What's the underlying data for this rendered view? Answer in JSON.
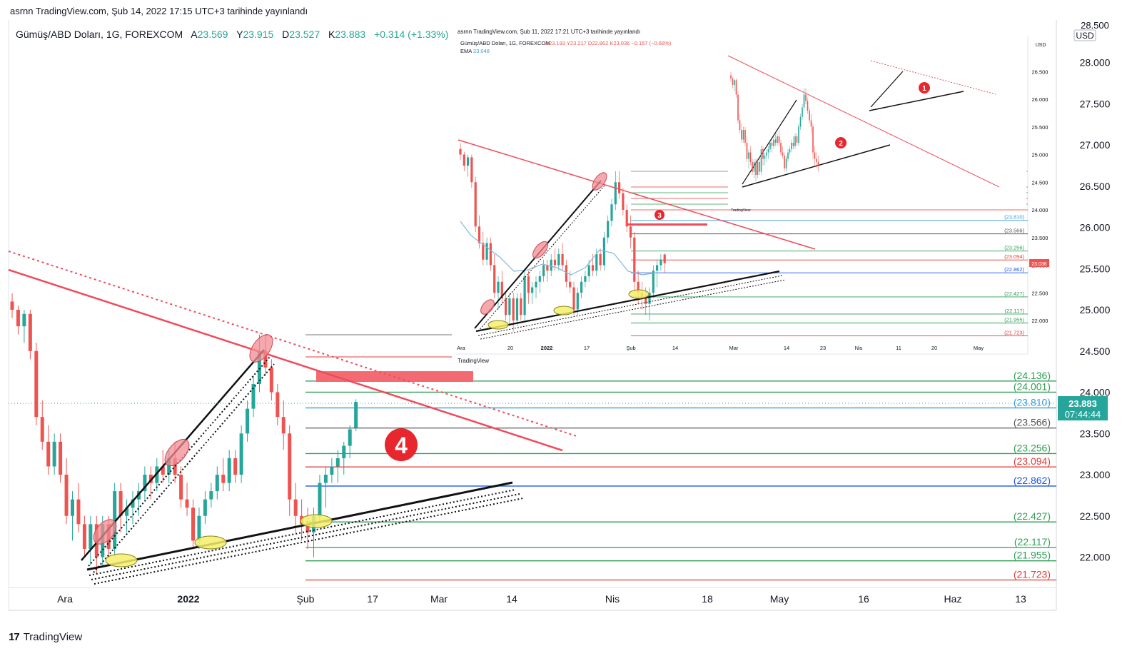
{
  "header": {
    "publish_line": "asrnn TradingView.com, Şub 14, 2022 17:15 UTC+3 tarihinde yayınlandı"
  },
  "legend": {
    "symbol": "Gümüş/ABD Doları, 1G, FOREXCOM",
    "open_label": "A",
    "open": "23.569",
    "high_label": "Y",
    "high": "23.915",
    "low_label": "D",
    "low": "23.527",
    "close_label": "K",
    "close": "23.883",
    "change": "+0.314 (+1.33%)"
  },
  "price_axis": {
    "currency": "USD",
    "top_partial": "28.500",
    "current_price": "23.883",
    "countdown": "07:44:44"
  },
  "colors": {
    "up": "#26a69a",
    "down": "#ef5350",
    "trend_red": "#f04b5a",
    "fib_green": "#2e9e55",
    "fib_red": "#e53935",
    "fib_blue": "#1e53e5",
    "fib_gray": "#555555"
  },
  "annotation": {
    "label": "4"
  },
  "footer": {
    "brand": "TradingView",
    "brand_mark": "17"
  },
  "inset": {
    "publish_line": "asrnn TradingView.com, Şub 11, 2022 17:21 UTC+3 tarihinde yayınlandı",
    "legend_symbol": "Gümüş/ABD Doları, 1G, FOREXCOM",
    "legend_values": "A23.193  Y23.217  D22.862  K23.036  −0.157 (−0.68%)",
    "ema_label": "EMA",
    "ema_value": "23.048",
    "currency": "USD",
    "current_price": "23.036",
    "annotation": "3",
    "brand": "TradingView",
    "price_ticks": [
      "26.500",
      "26.000",
      "25.500",
      "25.000",
      "24.500",
      "24.000",
      "23.500",
      "23.000",
      "22.500",
      "22.000"
    ],
    "fib_labels": [
      "(23.810)",
      "(23.566)",
      "(23.256)",
      "(23.094)",
      "(22.862)",
      "(22.427)",
      "(22.117)",
      "(21.955)",
      "(21.723)"
    ],
    "date_ticks": [
      "Ara",
      "20",
      "2022",
      "17",
      "Şub",
      "14",
      "Mar",
      "14",
      "23",
      "Nis",
      "11",
      "20",
      "May"
    ],
    "inner": {
      "annotation1": "1",
      "annotation2": "2",
      "brand": "TradingView"
    }
  },
  "chart_data": {
    "type": "candlestick",
    "title": "",
    "symbol": "Gümüş/ABD Doları, 1G, FOREXCOM",
    "ylim": [
      21.6,
      28.6
    ],
    "y_ticks": [
      "28.000",
      "27.500",
      "27.000",
      "26.500",
      "26.000",
      "25.500",
      "25.000",
      "24.500",
      "24.000",
      "23.500",
      "23.000",
      "22.500",
      "22.000"
    ],
    "x_ticks": [
      "Ara",
      "2022",
      "Şub",
      "17",
      "Mar",
      "14",
      "Nis",
      "18",
      "May",
      "16",
      "Haz",
      "13"
    ],
    "fib_levels": [
      {
        "value": 24.136,
        "label": "(24.136)",
        "color": "#2e9e55"
      },
      {
        "value": 24.001,
        "label": "(24.001)",
        "color": "#2e9e55"
      },
      {
        "value": 23.81,
        "label": "(23.810)",
        "color": "#3a9ad9"
      },
      {
        "value": 23.566,
        "label": "(23.566)",
        "color": "#555555"
      },
      {
        "value": 23.256,
        "label": "(23.256)",
        "color": "#2e9e55"
      },
      {
        "value": 23.094,
        "label": "(23.094)",
        "color": "#e53935"
      },
      {
        "value": 22.862,
        "label": "(22.862)",
        "color": "#1e53e5"
      },
      {
        "value": 22.427,
        "label": "(22.427)",
        "color": "#2e9e55"
      },
      {
        "value": 22.117,
        "label": "(22.117)",
        "color": "#2e9e55"
      },
      {
        "value": 21.955,
        "label": "(21.955)",
        "color": "#2e9e55"
      },
      {
        "value": 21.723,
        "label": "(21.723)",
        "color": "#e53935"
      }
    ],
    "candles": [
      [
        25.1,
        25.2,
        24.9,
        25.0
      ],
      [
        25.0,
        25.05,
        24.7,
        24.8
      ],
      [
        24.8,
        25.0,
        24.6,
        24.95
      ],
      [
        24.95,
        25.0,
        24.4,
        24.5
      ],
      [
        24.5,
        24.6,
        23.6,
        23.7
      ],
      [
        23.7,
        23.9,
        23.3,
        23.4
      ],
      [
        23.4,
        23.6,
        23.0,
        23.1
      ],
      [
        23.1,
        23.5,
        23.0,
        23.4
      ],
      [
        23.4,
        23.5,
        22.9,
        23.0
      ],
      [
        23.0,
        23.2,
        22.4,
        22.5
      ],
      [
        22.5,
        22.8,
        22.2,
        22.7
      ],
      [
        22.7,
        22.9,
        22.3,
        22.4
      ],
      [
        22.4,
        22.5,
        22.0,
        22.1
      ],
      [
        22.1,
        22.5,
        21.9,
        22.4
      ],
      [
        22.4,
        22.5,
        21.8,
        22.0
      ],
      [
        22.0,
        22.5,
        21.9,
        22.4
      ],
      [
        22.4,
        22.5,
        22.0,
        22.1
      ],
      [
        22.1,
        22.9,
        22.0,
        22.8
      ],
      [
        22.8,
        22.9,
        22.3,
        22.5
      ],
      [
        22.5,
        22.7,
        22.3,
        22.6
      ],
      [
        22.6,
        22.8,
        22.4,
        22.7
      ],
      [
        22.7,
        22.9,
        22.5,
        22.8
      ],
      [
        22.8,
        23.1,
        22.7,
        23.0
      ],
      [
        23.0,
        23.1,
        22.7,
        22.9
      ],
      [
        22.9,
        23.2,
        22.8,
        23.1
      ],
      [
        23.1,
        23.3,
        22.9,
        23.0
      ],
      [
        23.0,
        23.3,
        22.9,
        23.2
      ],
      [
        23.2,
        23.4,
        22.9,
        23.0
      ],
      [
        23.0,
        23.1,
        22.6,
        22.7
      ],
      [
        22.7,
        22.9,
        22.5,
        22.6
      ],
      [
        22.6,
        22.7,
        22.1,
        22.2
      ],
      [
        22.2,
        22.6,
        22.1,
        22.5
      ],
      [
        22.5,
        22.8,
        22.4,
        22.7
      ],
      [
        22.7,
        22.9,
        22.6,
        22.8
      ],
      [
        22.8,
        23.1,
        22.7,
        23.0
      ],
      [
        23.0,
        23.2,
        22.8,
        22.9
      ],
      [
        22.9,
        23.3,
        22.8,
        23.2
      ],
      [
        23.2,
        23.3,
        22.9,
        23.0
      ],
      [
        23.0,
        23.6,
        22.9,
        23.5
      ],
      [
        23.5,
        23.9,
        23.4,
        23.8
      ],
      [
        23.8,
        24.2,
        23.7,
        24.1
      ],
      [
        24.1,
        24.7,
        24.0,
        24.5
      ],
      [
        24.5,
        24.7,
        24.2,
        24.3
      ],
      [
        24.3,
        24.4,
        23.9,
        24.0
      ],
      [
        24.0,
        24.1,
        23.6,
        23.7
      ],
      [
        23.7,
        23.9,
        23.3,
        23.5
      ],
      [
        23.5,
        23.6,
        22.5,
        22.7
      ],
      [
        22.7,
        22.9,
        22.3,
        22.5
      ],
      [
        22.5,
        22.7,
        22.2,
        22.4
      ],
      [
        22.4,
        22.6,
        22.1,
        22.3
      ],
      [
        22.3,
        22.6,
        22.0,
        22.5
      ],
      [
        22.5,
        23.0,
        22.4,
        22.9
      ],
      [
        22.9,
        23.1,
        22.6,
        23.0
      ],
      [
        23.0,
        23.2,
        22.9,
        23.1
      ],
      [
        23.1,
        23.3,
        22.9,
        23.2
      ],
      [
        23.2,
        23.4,
        23.0,
        23.35
      ],
      [
        23.35,
        23.6,
        23.2,
        23.55
      ],
      [
        23.569,
        23.915,
        23.527,
        23.883
      ]
    ]
  }
}
